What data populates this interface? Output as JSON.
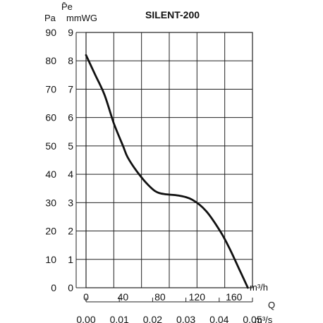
{
  "chart_data": {
    "type": "line",
    "title": "SILENT-200",
    "y_quantity": "P̄e",
    "y_units": [
      "Pa",
      "mmWG"
    ],
    "x_quantity": "Q",
    "x_units": [
      "m³/h",
      "m³/s"
    ],
    "y_ticks_pa": [
      "0",
      "10",
      "20",
      "30",
      "40",
      "50",
      "60",
      "70",
      "80",
      "90"
    ],
    "y_ticks_mmwg": [
      "0",
      "1",
      "2",
      "3",
      "4",
      "5",
      "6",
      "7",
      "8",
      "9"
    ],
    "x_ticks_m3h": [
      "0",
      "40",
      "80",
      "120",
      "160"
    ],
    "x_ticks_m3s": [
      "0.00",
      "0.01",
      "0.02",
      "0.03",
      "0.04",
      "0.05"
    ],
    "xlim_m3h": [
      0,
      180
    ],
    "ylim_pa": [
      0,
      90
    ],
    "grid": true,
    "series": [
      {
        "x": [
          0,
          10,
          20,
          30,
          40,
          45,
          55,
          65,
          75,
          85,
          100,
          115,
          130,
          145,
          155,
          165,
          175
        ],
        "y": [
          82,
          75,
          68,
          58,
          50,
          46,
          41,
          37,
          34,
          33,
          32.5,
          31,
          27,
          20,
          14,
          7,
          0
        ]
      }
    ],
    "colors": {
      "line": "#111111",
      "grid": "#222222"
    }
  }
}
